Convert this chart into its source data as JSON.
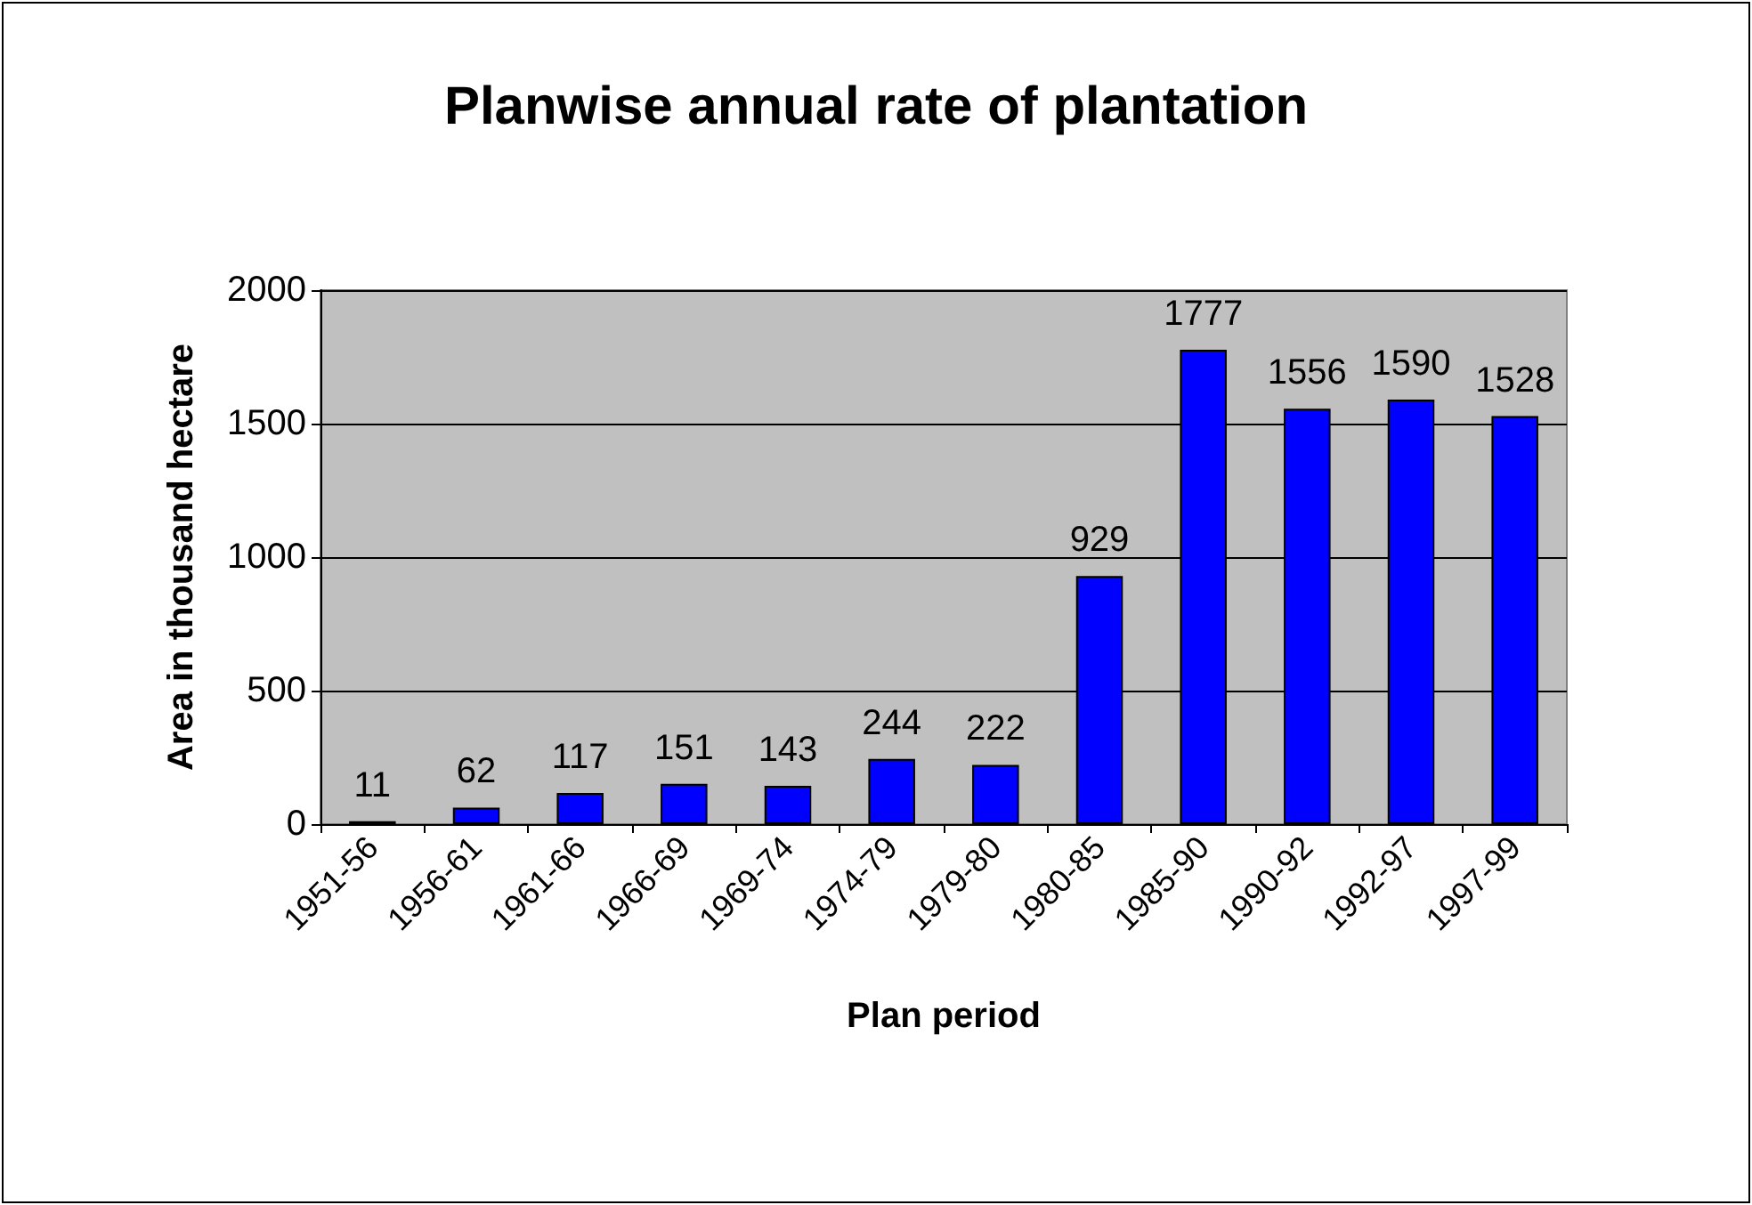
{
  "chart_data": {
    "type": "bar",
    "title": "Planwise annual rate of plantation",
    "xlabel": "Plan period",
    "ylabel": "Area in thousand hectare",
    "categories": [
      "1951-56",
      "1956-61",
      "1961-66",
      "1966-69",
      "1969-74",
      "1974-79",
      "1979-80",
      "1980-85",
      "1985-90",
      "1990-92",
      "1992-97",
      "1997-99"
    ],
    "values": [
      11,
      62,
      117,
      151,
      143,
      244,
      222,
      929,
      1777,
      1556,
      1590,
      1528
    ],
    "color": "#0000ff",
    "ylim": [
      0,
      2000
    ],
    "yticks": [
      0,
      500,
      1000,
      1500,
      2000
    ],
    "grid": "y",
    "data_labels": true
  }
}
